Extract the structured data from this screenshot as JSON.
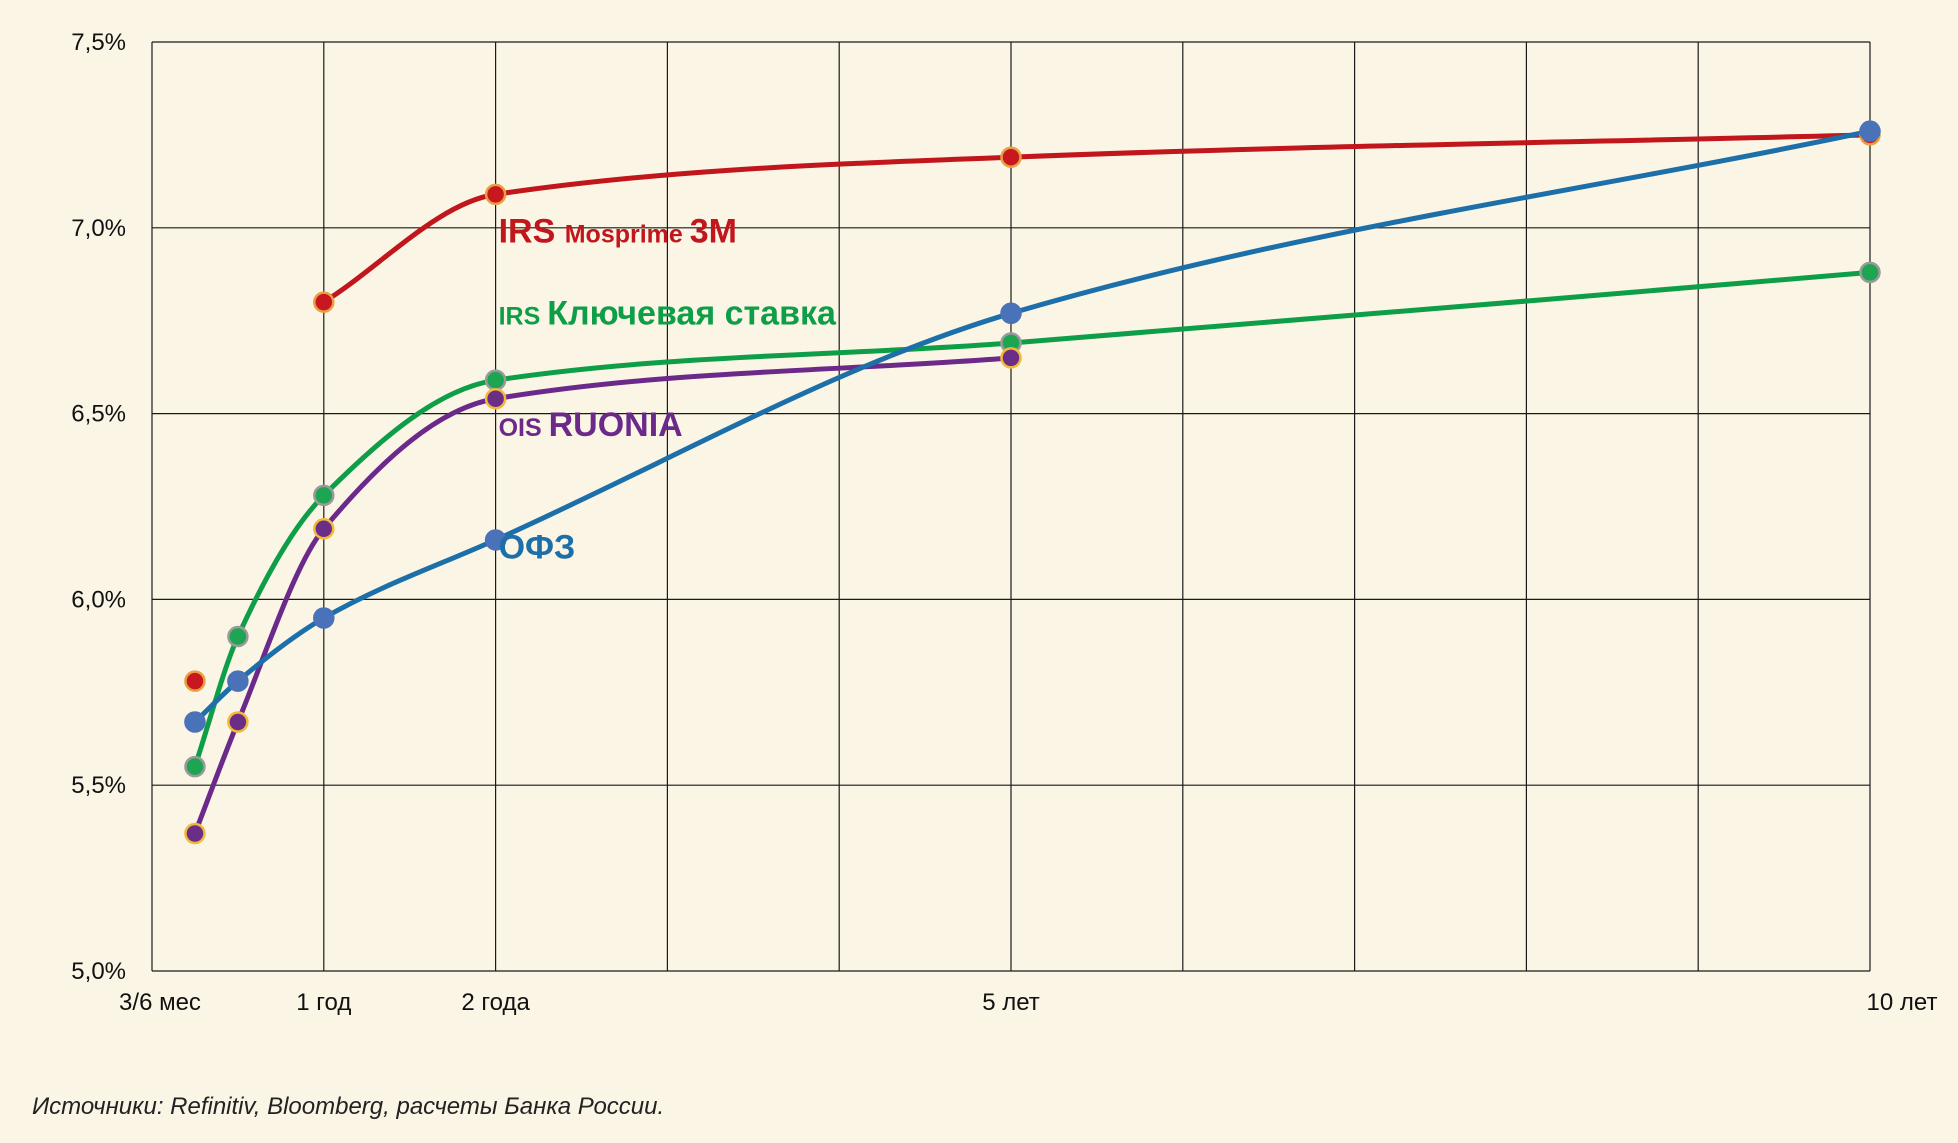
{
  "source_note": "Источники: Refinitiv, Bloomberg, расчеты Банка России.",
  "chart_data": {
    "type": "line",
    "title": "",
    "xlabel": "",
    "ylabel": "",
    "ylim": [
      5.0,
      7.5
    ],
    "xlim": [
      0,
      10
    ],
    "y_ticks": [
      {
        "value": 5.0,
        "label": "5,0%"
      },
      {
        "value": 5.5,
        "label": "5,5%"
      },
      {
        "value": 6.0,
        "label": "6,0%"
      },
      {
        "value": 6.5,
        "label": "6,5%"
      },
      {
        "value": 7.0,
        "label": "7,0%"
      },
      {
        "value": 7.5,
        "label": "7,5%"
      }
    ],
    "x_tick_labels": [
      {
        "value": 0.25,
        "label": "3/6 мес"
      },
      {
        "value": 1,
        "label": "1 год"
      },
      {
        "value": 2,
        "label": "2 года"
      },
      {
        "value": 5,
        "label": "5 лет"
      },
      {
        "value": 10,
        "label": "10 лет"
      }
    ],
    "x_gridlines": [
      0,
      1,
      2,
      3,
      4,
      5,
      6,
      7,
      8,
      9,
      10
    ],
    "grid": true,
    "series": [
      {
        "name": "IRS Mosprime 3M",
        "label_parts": [
          {
            "text": "IRS ",
            "size": "large"
          },
          {
            "text": "Mosprime ",
            "size": "small"
          },
          {
            "text": "3M",
            "size": "large"
          }
        ],
        "color": "#C0161C",
        "marker_color": "#C8171E",
        "marker_stroke": "#E8A040",
        "line_from_index": 1,
        "points": [
          [
            0.25,
            5.78
          ],
          [
            1,
            6.8
          ],
          [
            2,
            7.09
          ],
          [
            5,
            7.19
          ],
          [
            10,
            7.25
          ]
        ],
        "label_anchor": [
          2,
          6.96
        ]
      },
      {
        "name": "IRS Ключевая ставка",
        "label_parts": [
          {
            "text": "IRS ",
            "size": "small"
          },
          {
            "text": "Ключевая ставка",
            "size": "large"
          }
        ],
        "color": "#0E9E48",
        "marker_color": "#1DA551",
        "marker_stroke": "#9A9A9A",
        "line_from_index": 0,
        "points": [
          [
            0.25,
            5.55
          ],
          [
            0.5,
            5.9
          ],
          [
            1,
            6.28
          ],
          [
            2,
            6.59
          ],
          [
            5,
            6.69
          ],
          [
            10,
            6.88
          ]
        ],
        "label_anchor": [
          2,
          6.74
        ]
      },
      {
        "name": "OIS RUONIA",
        "label_parts": [
          {
            "text": "OIS ",
            "size": "small"
          },
          {
            "text": "RUONIA",
            "size": "large"
          }
        ],
        "color": "#6B2A8A",
        "marker_color": "#6B2E86",
        "marker_stroke": "#F2B93A",
        "line_from_index": 0,
        "points": [
          [
            0.25,
            5.37
          ],
          [
            0.5,
            5.67
          ],
          [
            1,
            6.19
          ],
          [
            2,
            6.54
          ],
          [
            5,
            6.65
          ]
        ],
        "label_anchor": [
          2,
          6.44
        ]
      },
      {
        "name": "ОФЗ",
        "label_parts": [
          {
            "text": "ОФЗ",
            "size": "large"
          }
        ],
        "color": "#1C6FA8",
        "marker_color": "#4A72B8",
        "marker_stroke": "#4A72B8",
        "line_from_index": 0,
        "points": [
          [
            0.25,
            5.67
          ],
          [
            0.5,
            5.78
          ],
          [
            1,
            5.95
          ],
          [
            2,
            6.16
          ],
          [
            5,
            6.77
          ],
          [
            10,
            7.26
          ]
        ],
        "label_anchor": [
          2,
          6.11
        ]
      }
    ]
  }
}
